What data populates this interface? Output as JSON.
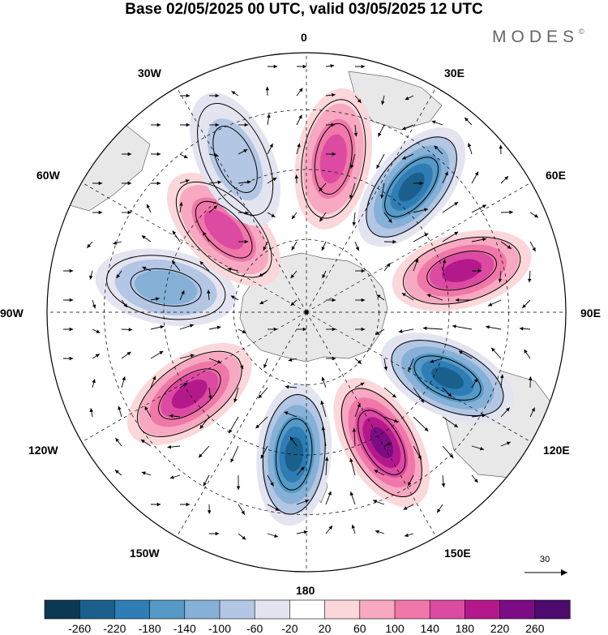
{
  "title": "Base 02/05/2025 00 UTC, valid 03/05/2025 12 UTC",
  "brand": {
    "name": "MODES",
    "mark": "©"
  },
  "longitude_labels": {
    "lon_0": "0",
    "lon_30e": "30E",
    "lon_60e": "60E",
    "lon_90e": "90E",
    "lon_120e": "120E",
    "lon_150e": "150E",
    "lon_180": "180",
    "lon_150w": "150W",
    "lon_120w": "120W",
    "lon_90w": "90W",
    "lon_60w": "60W",
    "lon_30w": "30W"
  },
  "reference_vector": {
    "label": "30"
  },
  "colorbar": {
    "colors": [
      "#0b3954",
      "#1b5f8c",
      "#2f7db5",
      "#5599c6",
      "#86b0d6",
      "#b3c6e3",
      "#e4e4f1",
      "#ffffff",
      "#fbd7da",
      "#f6a9c0",
      "#ef78a9",
      "#dc4aa1",
      "#b4198c",
      "#7c0c84",
      "#4d0b6e"
    ],
    "labels": [
      "-260",
      "-220",
      "-180",
      "-140",
      "-100",
      "-60",
      "-20",
      "20",
      "60",
      "100",
      "140",
      "180",
      "220",
      "260"
    ]
  },
  "map": {
    "projection": "south-polar-stereographic",
    "field": "geopotential-height-anomaly",
    "vectors": "wind",
    "anomaly_centers": [
      {
        "lon": 10,
        "colat": 0.6,
        "value": 150
      },
      {
        "lon": 40,
        "colat": 0.63,
        "value": -230
      },
      {
        "lon": 75,
        "colat": 0.62,
        "value": 220
      },
      {
        "lon": 115,
        "colat": 0.6,
        "value": -260
      },
      {
        "lon": 150,
        "colat": 0.58,
        "value": 240
      },
      {
        "lon": 185,
        "colat": 0.55,
        "value": -250
      },
      {
        "lon": 235,
        "colat": 0.55,
        "value": 200
      },
      {
        "lon": 280,
        "colat": 0.55,
        "value": -120
      },
      {
        "lon": 315,
        "colat": 0.45,
        "value": 170
      },
      {
        "lon": 335,
        "colat": 0.65,
        "value": -90
      }
    ]
  }
}
